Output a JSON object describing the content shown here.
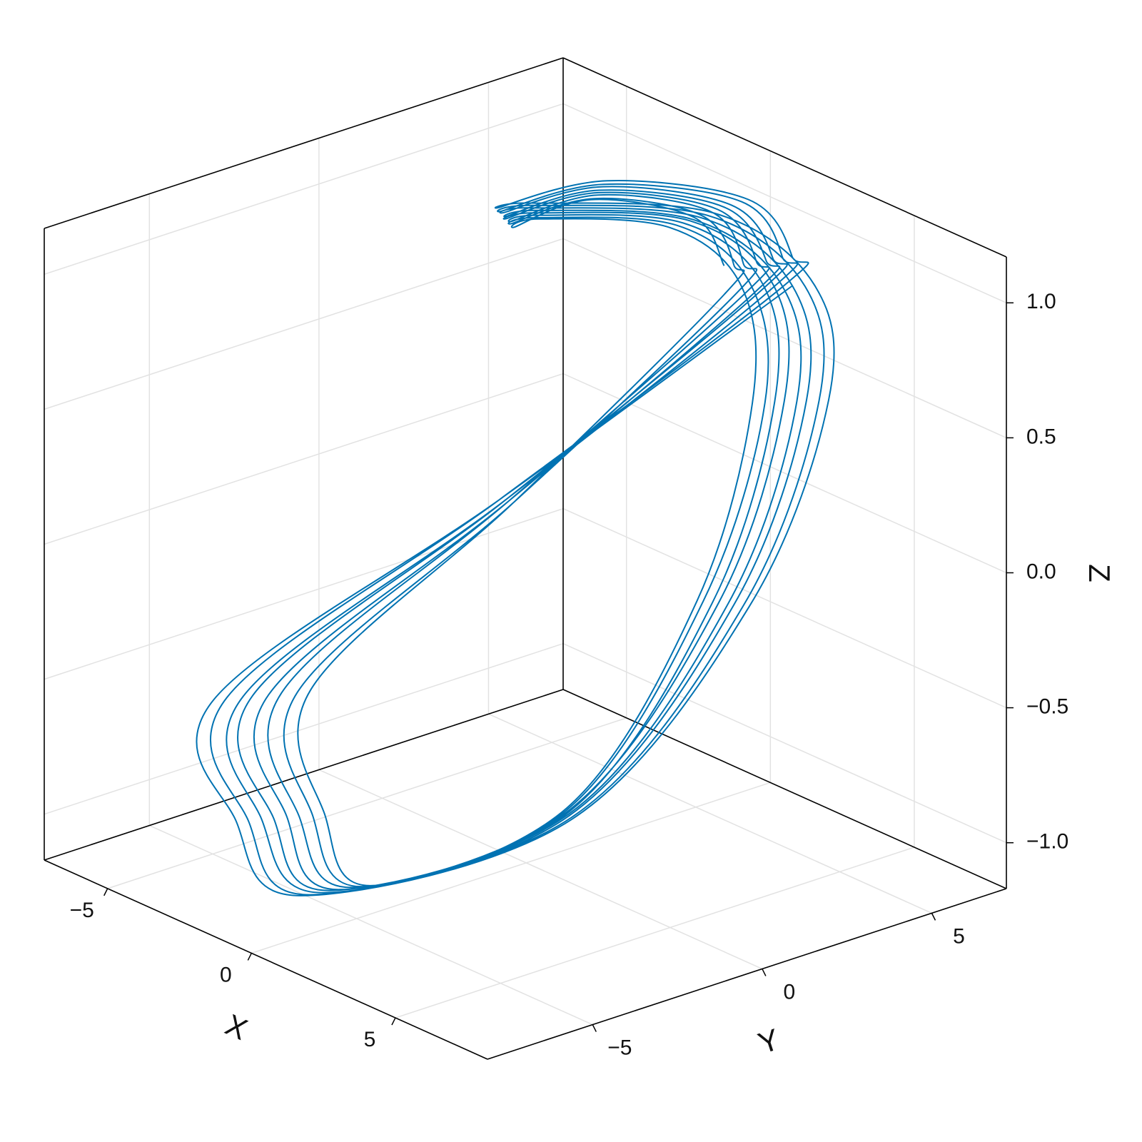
{
  "chart_data": {
    "type": "line3d",
    "color": "#0072b2",
    "grid": true,
    "x_label": "X",
    "y_label": "Y",
    "z_label": "Z",
    "xlim": [
      -7.2,
      8.2
    ],
    "ylim": [
      -8.1,
      7.2
    ],
    "zlim": [
      -1.17,
      1.17
    ],
    "xticks": [
      {
        "value": -5,
        "label": "−5"
      },
      0,
      5
    ],
    "yticks": [
      {
        "value": -5,
        "label": "−5"
      },
      0,
      5
    ],
    "zticks": [
      {
        "value": -1.0,
        "label": "−1.0"
      },
      {
        "value": -0.5,
        "label": "−0.5"
      },
      {
        "value": 0.0,
        "label": "0.0"
      },
      0.5,
      {
        "value": 1.0,
        "label": "1.0"
      }
    ],
    "x": [
      3.1,
      -0.1,
      -2.6,
      -2.9,
      -1.0,
      3.2,
      4.7,
      4.5,
      4.6,
      1.1,
      -2.0,
      -2.9,
      -1.3,
      1.0,
      3.0,
      3.0,
      -0.1,
      -2.5,
      -2.7,
      -0.9,
      3.1,
      4.6,
      4.4,
      4.5,
      1.1,
      -1.9,
      -2.7,
      -1.2,
      1.0,
      2.9,
      2.9,
      0.0,
      -2.3,
      -2.6,
      -0.8,
      3.0,
      4.4,
      4.2,
      4.3,
      1.1,
      -1.8,
      -2.6,
      -1.1,
      1.0,
      2.8,
      2.8,
      0.0,
      -2.2,
      -2.4,
      -0.8,
      2.9,
      4.3,
      4.1,
      4.2,
      1.1,
      -1.6,
      -2.4,
      -1.0,
      1.0,
      2.8,
      2.8,
      0.1,
      -2.0,
      -2.3,
      -0.7,
      2.8,
      4.1,
      3.9,
      4.0,
      1.1,
      -1.5,
      -2.3,
      -0.9,
      1.0,
      2.7,
      2.7,
      0.1,
      -1.9,
      -2.1,
      -0.6,
      2.8,
      4.0,
      3.8,
      3.9,
      1.1,
      -1.4,
      -2.1,
      -0.8,
      1.0,
      2.6,
      2.6,
      0.2,
      -1.7,
      -2.0,
      -0.5,
      2.7,
      3.8,
      3.7,
      3.7,
      1.1,
      -1.3,
      -2.0,
      -0.7,
      1.0,
      2.5,
      2.5,
      0.2,
      -1.6,
      -1.8,
      -0.4,
      2.6,
      3.7,
      3.5,
      3.6,
      1.1,
      -1.2,
      -1.8,
      -0.7,
      1.0,
      2.4
    ],
    "y": [
      5.2,
      -0.7,
      -7.0,
      -6.1,
      -5.8,
      -1.4,
      2.6,
      5.1,
      4.6,
      4.6,
      1.9,
      1.7,
      3.5,
      5.7,
      5.3,
      5.0,
      -0.7,
      -6.7,
      -5.9,
      -5.6,
      -1.3,
      2.5,
      4.9,
      4.4,
      4.4,
      1.8,
      1.6,
      3.3,
      5.5,
      5.1,
      4.8,
      -0.6,
      -6.4,
      -5.6,
      -5.3,
      -1.3,
      2.4,
      4.7,
      4.2,
      4.2,
      1.7,
      1.6,
      3.2,
      5.2,
      4.9,
      4.6,
      -0.6,
      -6.2,
      -5.4,
      -5.1,
      -1.2,
      2.3,
      4.5,
      4.0,
      4.0,
      1.7,
      1.5,
      3.0,
      5.0,
      4.7,
      4.4,
      -0.6,
      -5.9,
      -5.1,
      -4.9,
      -1.2,
      2.2,
      4.3,
      3.9,
      3.9,
      1.6,
      1.4,
      2.9,
      4.8,
      4.5,
      4.2,
      -0.6,
      -5.6,
      -4.9,
      -4.6,
      -1.1,
      2.1,
      4.1,
      3.7,
      3.7,
      1.5,
      1.4,
      2.8,
      4.6,
      4.2,
      4.0,
      -0.5,
      -5.3,
      -4.6,
      -4.4,
      -1.1,
      2.0,
      3.9,
      3.5,
      3.5,
      1.4,
      1.3,
      2.6,
      4.3,
      4.0,
      3.7,
      -0.5,
      -5.0,
      -4.4,
      -4.2,
      -1.0,
      1.9,
      3.7,
      3.3,
      3.3,
      1.4,
      1.2,
      2.5,
      4.1,
      3.8
    ],
    "z": [
      0.9,
      0.2,
      -0.4,
      -0.9,
      -1.1,
      -0.8,
      -0.1,
      0.55,
      1.0,
      1.1,
      1.1,
      1.05,
      1.15,
      1.1,
      1.0,
      0.9,
      0.2,
      -0.4,
      -0.9,
      -1.1,
      -0.8,
      -0.1,
      0.55,
      1.0,
      1.1,
      1.1,
      1.05,
      1.15,
      1.1,
      1.0,
      0.9,
      0.2,
      -0.4,
      -0.9,
      -1.1,
      -0.8,
      -0.1,
      0.55,
      1.0,
      1.1,
      1.1,
      1.05,
      1.15,
      1.1,
      1.0,
      0.9,
      0.2,
      -0.4,
      -0.9,
      -1.1,
      -0.8,
      -0.1,
      0.55,
      1.0,
      1.1,
      1.1,
      1.05,
      1.15,
      1.1,
      1.0,
      0.9,
      0.2,
      -0.4,
      -0.9,
      -1.1,
      -0.8,
      -0.1,
      0.55,
      1.0,
      1.1,
      1.1,
      1.05,
      1.15,
      1.1,
      1.0,
      0.9,
      0.2,
      -0.4,
      -0.9,
      -1.1,
      -0.8,
      -0.1,
      0.55,
      1.0,
      1.1,
      1.1,
      1.05,
      1.15,
      1.1,
      1.0,
      0.9,
      0.2,
      -0.4,
      -0.9,
      -1.1,
      -0.8,
      -0.1,
      0.55,
      1.0,
      1.1,
      1.1,
      1.05,
      1.15,
      1.1,
      1.0,
      0.9,
      0.2,
      -0.4,
      -0.9,
      -1.1,
      -0.8,
      -0.1,
      0.55,
      1.0,
      1.1,
      1.1,
      1.05,
      1.15,
      1.1,
      1.0
    ]
  }
}
